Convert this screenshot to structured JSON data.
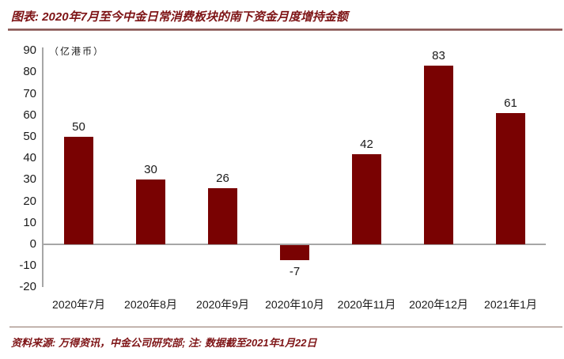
{
  "header": {
    "title": "图表: 2020年7月至今中金日常消费板块的南下资金月度增持金额"
  },
  "chart_data": {
    "type": "bar",
    "title": "2020年7月至今中金日常消费板块的南下资金月度增持金额",
    "unit_label": "（亿港币）",
    "categories": [
      "2020年7月",
      "2020年8月",
      "2020年9月",
      "2020年10月",
      "2020年11月",
      "2020年12月",
      "2021年1月"
    ],
    "values": [
      50,
      30,
      26,
      -7,
      42,
      83,
      61
    ],
    "y_ticks": [
      90,
      80,
      70,
      60,
      50,
      40,
      30,
      20,
      10,
      0,
      -10,
      -20
    ],
    "ylim": [
      -20,
      90
    ],
    "xlabel": "",
    "ylabel": "（亿港币）",
    "grid": false,
    "legend": "none",
    "bar_color": "#790202",
    "axis_color": "#A6A6A6"
  },
  "footer": {
    "source": "资料来源: 万得资讯，中金公司研究部; 注: 数据截至2021年1月22日"
  },
  "colors": {
    "accent": "#7E1416",
    "bar": "#790202",
    "axis": "#A6A6A6",
    "title_rule": "#7a4543",
    "footer_rule": "#8d7368"
  }
}
